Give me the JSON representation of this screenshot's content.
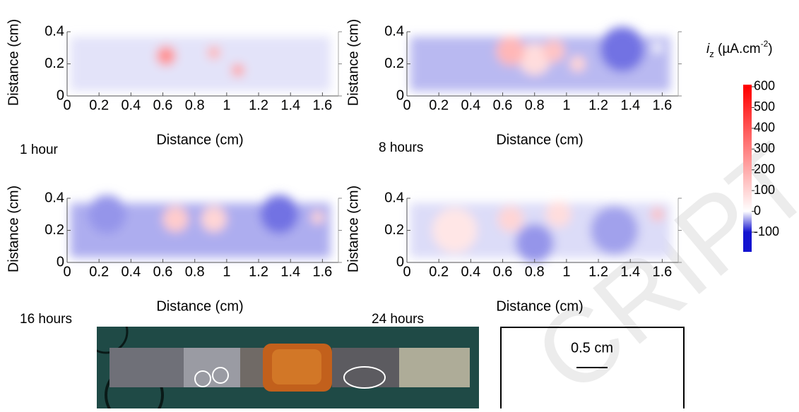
{
  "chart_data": [
    {
      "type": "heatmap",
      "caption": "1 hour",
      "xlabel": "Distance (cm)",
      "ylabel": "Distance (cm)",
      "xlim": [
        0,
        1.7
      ],
      "ylim": [
        0,
        0.4
      ],
      "xticks": [
        0,
        0.2,
        0.4,
        0.6,
        0.8,
        1,
        1.2,
        1.4,
        1.6
      ],
      "yticks": [
        0,
        0.2,
        0.4
      ],
      "band": -12,
      "spots": [
        {
          "x": 0.62,
          "y": 0.25,
          "r": 0.06,
          "value": 260
        },
        {
          "x": 0.92,
          "y": 0.27,
          "r": 0.04,
          "value": 180
        },
        {
          "x": 1.07,
          "y": 0.16,
          "r": 0.04,
          "value": 220
        }
      ]
    },
    {
      "type": "heatmap",
      "caption": "8 hours",
      "xlabel": "Distance (cm)",
      "ylabel": "Distance (cm)",
      "xlim": [
        0,
        1.7
      ],
      "ylim": [
        0,
        0.4
      ],
      "xticks": [
        0,
        0.2,
        0.4,
        0.6,
        0.8,
        1,
        1.2,
        1.4,
        1.6
      ],
      "yticks": [
        0,
        0.2,
        0.4
      ],
      "band": -30,
      "spots": [
        {
          "x": 1.35,
          "y": 0.29,
          "r": 0.14,
          "value": -60
        },
        {
          "x": 0.8,
          "y": 0.23,
          "r": 0.1,
          "value": 80
        },
        {
          "x": 0.65,
          "y": 0.28,
          "r": 0.09,
          "value": 170
        },
        {
          "x": 0.92,
          "y": 0.28,
          "r": 0.07,
          "value": 140
        },
        {
          "x": 1.07,
          "y": 0.2,
          "r": 0.05,
          "value": 100
        },
        {
          "x": 1.57,
          "y": 0.3,
          "r": 0.03,
          "value": 0
        }
      ]
    },
    {
      "type": "heatmap",
      "caption": "16 hours",
      "xlabel": "Distance (cm)",
      "ylabel": "Distance (cm)",
      "xlim": [
        0,
        1.7
      ],
      "ylim": [
        0,
        0.4
      ],
      "xticks": [
        0,
        0.2,
        0.4,
        0.6,
        0.8,
        1,
        1.2,
        1.4,
        1.6
      ],
      "yticks": [
        0,
        0.2,
        0.4
      ],
      "band": -35,
      "spots": [
        {
          "x": 0.25,
          "y": 0.3,
          "r": 0.12,
          "value": -45
        },
        {
          "x": 1.33,
          "y": 0.3,
          "r": 0.12,
          "value": -60
        },
        {
          "x": 0.68,
          "y": 0.27,
          "r": 0.08,
          "value": 120
        },
        {
          "x": 0.92,
          "y": 0.27,
          "r": 0.08,
          "value": 100
        },
        {
          "x": 1.57,
          "y": 0.28,
          "r": 0.04,
          "value": 100
        }
      ]
    },
    {
      "type": "heatmap",
      "caption": "24 hours",
      "xlabel": "Distance (cm)",
      "ylabel": "Distance (cm)",
      "xlim": [
        0,
        1.7
      ],
      "ylim": [
        0,
        0.4
      ],
      "xticks": [
        0,
        0.2,
        0.4,
        0.6,
        0.8,
        1,
        1.2,
        1.4,
        1.6
      ],
      "yticks": [
        0,
        0.2,
        0.4
      ],
      "band": -15,
      "spots": [
        {
          "x": 1.3,
          "y": 0.2,
          "r": 0.15,
          "value": -40
        },
        {
          "x": 0.8,
          "y": 0.12,
          "r": 0.12,
          "value": -45
        },
        {
          "x": 0.3,
          "y": 0.2,
          "r": 0.14,
          "value": 60
        },
        {
          "x": 0.65,
          "y": 0.27,
          "r": 0.08,
          "value": 100
        },
        {
          "x": 0.95,
          "y": 0.3,
          "r": 0.08,
          "value": 80
        },
        {
          "x": 1.57,
          "y": 0.3,
          "r": 0.04,
          "value": 150
        }
      ]
    }
  ],
  "colorbar": {
    "title": [
      "i",
      "z",
      " (µA.cm",
      "-2",
      ")"
    ],
    "clim": [
      -195,
      610
    ],
    "ticks": [
      600,
      500,
      400,
      300,
      200,
      100,
      0,
      -100
    ],
    "cmap": [
      {
        "value": -100,
        "color": "#1414d0"
      },
      {
        "value": 0,
        "color": "#ffffff"
      },
      {
        "value": 600,
        "color": "#ff0000"
      }
    ]
  },
  "scale_bar": "0.5 cm",
  "watermark": "CRIPT"
}
